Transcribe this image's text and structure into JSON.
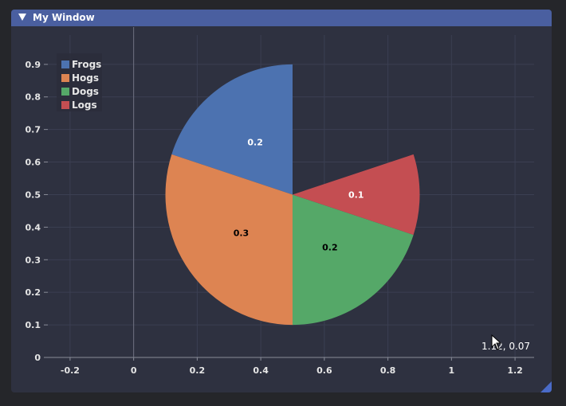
{
  "window": {
    "title": "My Window"
  },
  "readout": "1.12, 0.07",
  "colors": {
    "plot_bg": "#2e3140",
    "grid": "#3b3f52",
    "axis": "#8a8d99"
  },
  "chart_data": {
    "type": "pie",
    "categories": [
      "Frogs",
      "Hogs",
      "Dogs",
      "Logs"
    ],
    "values": [
      0.2,
      0.3,
      0.2,
      0.1
    ],
    "labels": [
      "0.2",
      "0.3",
      "0.2",
      "0.1"
    ],
    "colors": [
      "#4c72b0",
      "#dd8452",
      "#55a868",
      "#c44e52"
    ],
    "label_colors": [
      "#ffffff",
      "#000000",
      "#000000",
      "#ffffff"
    ],
    "center": [
      0.5,
      0.5
    ],
    "radius": 0.4,
    "start_angle_deg": 90,
    "xlim": [
      -0.27,
      1.26
    ],
    "ylim": [
      0,
      0.99
    ],
    "xticks": [
      -0.2,
      0,
      0.2,
      0.4,
      0.6,
      0.8,
      1,
      1.2
    ],
    "xtick_labels": [
      "-0.2",
      "0",
      "0.2",
      "0.4",
      "0.6",
      "0.8",
      "1",
      "1.2"
    ],
    "yticks": [
      0,
      0.1,
      0.2,
      0.3,
      0.4,
      0.5,
      0.6,
      0.7,
      0.8,
      0.9
    ],
    "ytick_labels": [
      "0",
      "0.1",
      "0.2",
      "0.3",
      "0.4",
      "0.5",
      "0.6",
      "0.7",
      "0.8",
      "0.9"
    ],
    "grid": true,
    "legend_position": "top-left"
  }
}
